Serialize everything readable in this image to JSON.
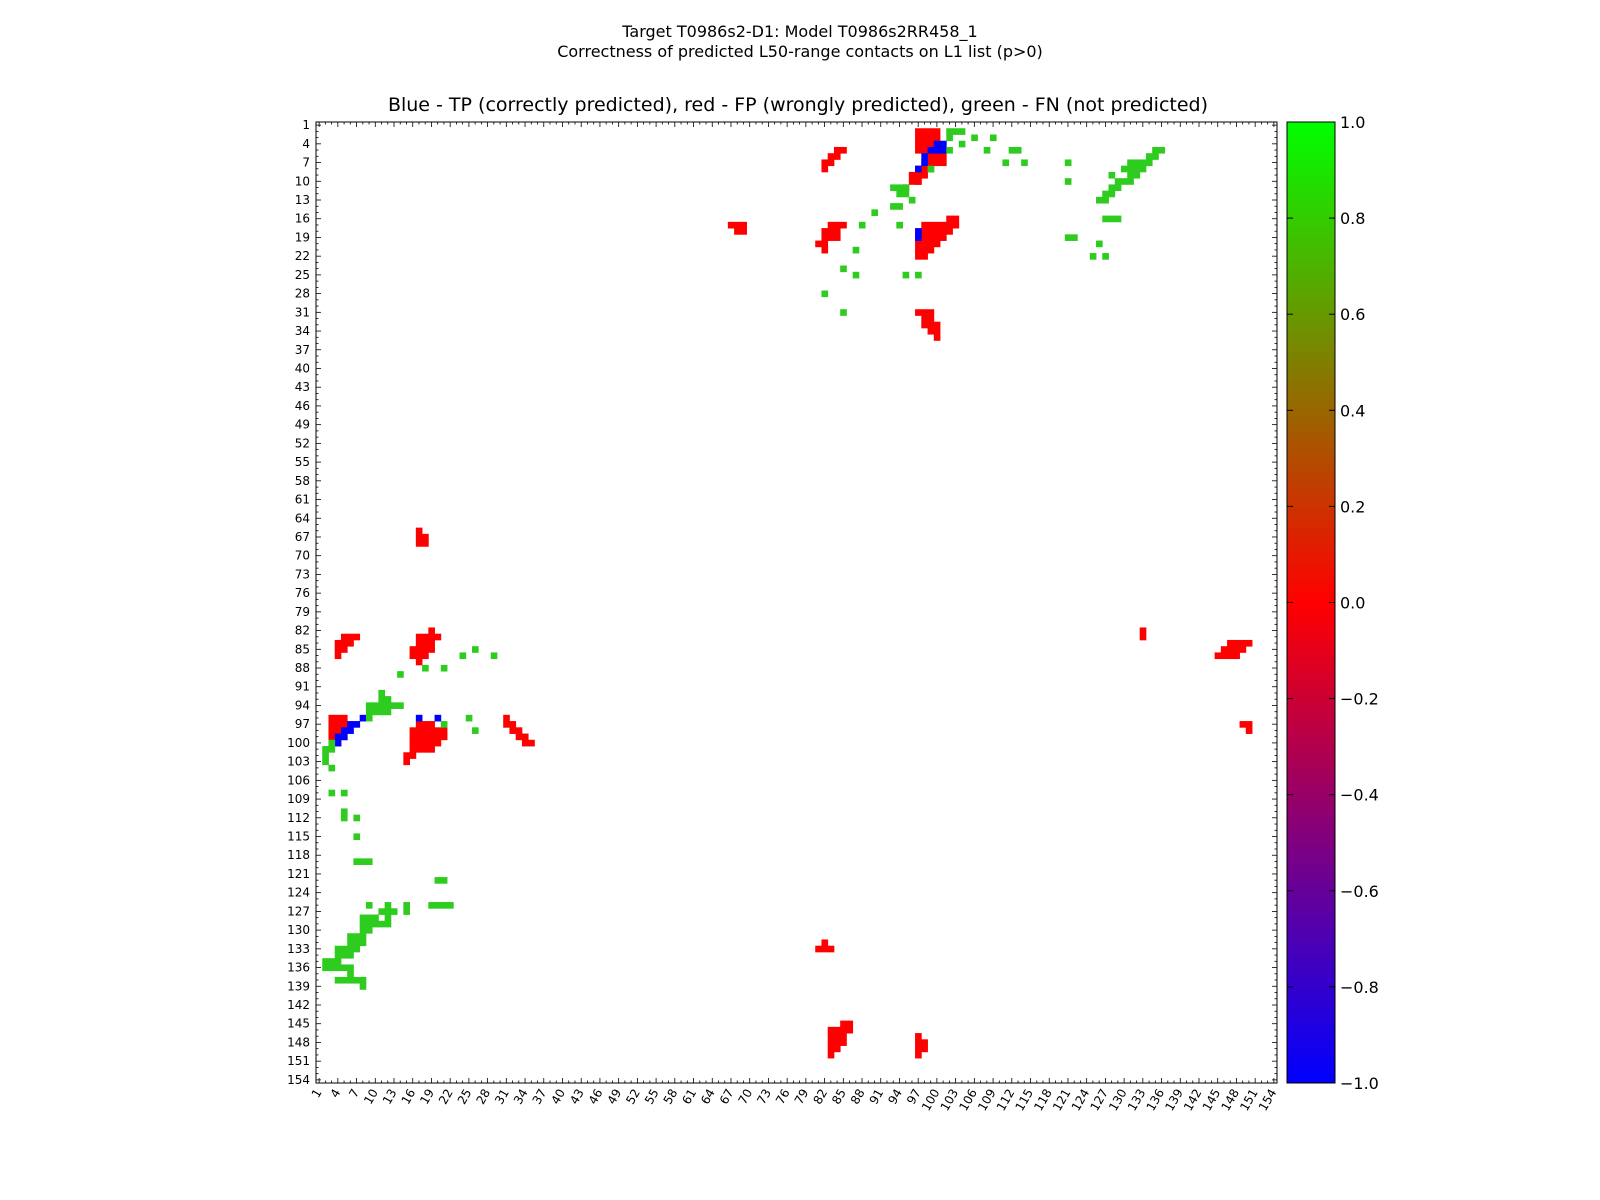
{
  "figure": {
    "title_line1": "Target T0986s2-D1: Model T0986s2RR458_1",
    "title_line2": "Correctness of predicted L50-range contacts on L1 list (p>0)",
    "subtitle": "Blue - TP (correctly predicted), red - FP (wrongly predicted), green - FN (not predicted)"
  },
  "chart_data": {
    "type": "heatmap",
    "n": 154,
    "xlim": [
      1,
      154
    ],
    "ylim": [
      1,
      154
    ],
    "tick_labels": [
      "1",
      "4",
      "7",
      "10",
      "13",
      "16",
      "19",
      "22",
      "25",
      "28",
      "31",
      "34",
      "37",
      "40",
      "43",
      "46",
      "49",
      "52",
      "55",
      "58",
      "61",
      "64",
      "67",
      "70",
      "73",
      "76",
      "79",
      "82",
      "85",
      "88",
      "91",
      "94",
      "97",
      "100",
      "103",
      "106",
      "109",
      "112",
      "115",
      "118",
      "121",
      "124",
      "127",
      "130",
      "133",
      "136",
      "139",
      "142",
      "145",
      "148",
      "151",
      "154"
    ],
    "colorbar": {
      "min": -1.0,
      "max": 1.0,
      "ticks": [
        "1.0",
        "0.8",
        "0.6",
        "0.4",
        "0.2",
        "0.0",
        "−0.2",
        "−0.4",
        "−0.6",
        "−0.8",
        "−1.0"
      ],
      "stops": [
        {
          "v": -1.0,
          "color": "#0000ff"
        },
        {
          "v": 0.0,
          "color": "#ff0000"
        },
        {
          "v": 1.0,
          "color": "#00ff00"
        }
      ]
    },
    "categories": {
      "TP": "#0000ff",
      "FP": "#ff0000",
      "FN": "#2ecc1f"
    },
    "cells": {
      "FP": [
        [
          2,
          97,
          4,
          100
        ],
        [
          5,
          100,
          3,
          101
        ],
        [
          6,
          99,
          3,
          99
        ],
        [
          7,
          98,
          3,
          98
        ],
        [
          8,
          97,
          3,
          97
        ],
        [
          9,
          96,
          2,
          96
        ],
        [
          10,
          97,
          1,
          97
        ],
        [
          11,
          95,
          1,
          95
        ],
        [
          5,
          84,
          1,
          85
        ],
        [
          6,
          83,
          1,
          84
        ],
        [
          7,
          82,
          1,
          83
        ],
        [
          8,
          82,
          1,
          82
        ],
        [
          16,
          102,
          1,
          103
        ],
        [
          17,
          98,
          1,
          103
        ],
        [
          18,
          98,
          1,
          102
        ],
        [
          19,
          97,
          1,
          101
        ],
        [
          20,
          97,
          1,
          100
        ],
        [
          21,
          97,
          1,
          99
        ],
        [
          22,
          97,
          1,
          98
        ],
        [
          17,
          83,
          1,
          85
        ],
        [
          18,
          82,
          1,
          84
        ],
        [
          19,
          82,
          1,
          84
        ],
        [
          20,
          81,
          1,
          82
        ],
        [
          21,
          82,
          1,
          82
        ],
        [
          17,
          67,
          1,
          69
        ],
        [
          18,
          68,
          1,
          69
        ],
        [
          31,
          97,
          1,
          99
        ],
        [
          32,
          98,
          1,
          99
        ],
        [
          33,
          98,
          1,
          100
        ],
        [
          34,
          99,
          1,
          100
        ],
        [
          35,
          100,
          1,
          100
        ],
        [
          66,
          17,
          1,
          17
        ],
        [
          67,
          17,
          1,
          18
        ],
        [
          68,
          17,
          1,
          18
        ],
        [
          83,
          5,
          1,
          7
        ],
        [
          84,
          4,
          1,
          6
        ],
        [
          85,
          4,
          1,
          5
        ],
        [
          86,
          4,
          1,
          4
        ],
        [
          82,
          19,
          1,
          19
        ],
        [
          83,
          17,
          1,
          20
        ],
        [
          84,
          17,
          1,
          19
        ],
        [
          85,
          16,
          1,
          19
        ],
        [
          86,
          16,
          1,
          18
        ],
        [
          87,
          17,
          1,
          17
        ],
        [
          96,
          3,
          4,
          5
        ],
        [
          97,
          3,
          1,
          4
        ],
        [
          98,
          3,
          1,
          3
        ],
        [
          99,
          3,
          1,
          3
        ],
        [
          100,
          4,
          1,
          4
        ],
        [
          97,
          17,
          1,
          19
        ],
        [
          98,
          16,
          1,
          21
        ],
        [
          99,
          16,
          1,
          21
        ],
        [
          100,
          16,
          1,
          20
        ],
        [
          101,
          16,
          1,
          19
        ],
        [
          102,
          15,
          1,
          16
        ],
        [
          103,
          15,
          1,
          15
        ],
        [
          96,
          31,
          1,
          31
        ],
        [
          97,
          31,
          1,
          32
        ],
        [
          98,
          32,
          1,
          33
        ],
        [
          99,
          33,
          1,
          34
        ],
        [
          100,
          34,
          1,
          35
        ],
        [
          82,
          133,
          1,
          133
        ],
        [
          83,
          133,
          1,
          133
        ],
        [
          84,
          147,
          1,
          150
        ],
        [
          85,
          146,
          1,
          149
        ],
        [
          86,
          145,
          1,
          148
        ],
        [
          97,
          149,
          1,
          150
        ],
        [
          98,
          150,
          1,
          150
        ],
        [
          132,
          82,
          1,
          82
        ],
        [
          133,
          81,
          1,
          83
        ],
        [
          145,
          85,
          1,
          86
        ],
        [
          146,
          83,
          1,
          86
        ],
        [
          147,
          83,
          1,
          85
        ],
        [
          148,
          83,
          1,
          85
        ],
        [
          149,
          83,
          1,
          84
        ],
        [
          150,
          83,
          1,
          83
        ],
        [
          147,
          97,
          1,
          97
        ],
        [
          148,
          97,
          1,
          98
        ],
        [
          149,
          97,
          1,
          98
        ],
        [
          150,
          97,
          1,
          97
        ]
      ],
      "TP": [
        [
          4,
          100,
          2,
          101
        ],
        [
          5,
          99,
          1,
          99
        ],
        [
          6,
          98,
          1,
          98
        ],
        [
          7,
          98,
          1,
          98
        ],
        [
          8,
          97,
          1,
          97
        ],
        [
          18,
          97,
          1,
          97
        ],
        [
          19,
          97,
          1,
          97
        ],
        [
          96,
          8,
          1,
          8
        ],
        [
          97,
          6,
          1,
          7
        ],
        [
          98,
          5,
          1,
          6
        ],
        [
          99,
          4,
          1,
          5
        ],
        [
          100,
          4,
          1,
          4
        ],
        [
          96,
          17,
          1,
          17
        ],
        [
          96,
          20,
          1,
          20
        ]
      ],
      "FN": [
        [
          2,
          102,
          1,
          104
        ],
        [
          3,
          102,
          1,
          102
        ],
        [
          3,
          106,
          1,
          106
        ],
        [
          3,
          109,
          1,
          109
        ],
        [
          4,
          104,
          1,
          104
        ],
        [
          5,
          102,
          1,
          102
        ],
        [
          5,
          108,
          1,
          108
        ],
        [
          5,
          112,
          1,
          113
        ],
        [
          6,
          134,
          1,
          135
        ],
        [
          5,
          135,
          1,
          136
        ],
        [
          7,
          111,
          1,
          111
        ],
        [
          7,
          114,
          1,
          114
        ],
        [
          7,
          121,
          1,
          121
        ],
        [
          7,
          131,
          1,
          134
        ],
        [
          8,
          130,
          1,
          133
        ],
        [
          9,
          131,
          1,
          132
        ],
        [
          9,
          128,
          1,
          128
        ],
        [
          10,
          129,
          1,
          131
        ],
        [
          11,
          128,
          1,
          129
        ],
        [
          12,
          127,
          1,
          128
        ],
        [
          13,
          126,
          1,
          127
        ],
        [
          8,
          99,
          1,
          99
        ],
        [
          10,
          121,
          1,
          121
        ],
        [
          11,
          93,
          1,
          95
        ],
        [
          12,
          94,
          1,
          95
        ],
        [
          13,
          96,
          1,
          96
        ],
        [
          14,
          93,
          1,
          94
        ],
        [
          15,
          90,
          1,
          90
        ],
        [
          16,
          127,
          1,
          129
        ],
        [
          17,
          88,
          1,
          88
        ],
        [
          17,
          94,
          1,
          94
        ],
        [
          19,
          121,
          1,
          122
        ],
        [
          20,
          126,
          1,
          126
        ],
        [
          21,
          87,
          1,
          87
        ],
        [
          22,
          125,
          1,
          125
        ],
        [
          22,
          127,
          1,
          127
        ],
        [
          24,
          85,
          1,
          85
        ],
        [
          25,
          87,
          1,
          87
        ],
        [
          25,
          95,
          1,
          95
        ],
        [
          25,
          97,
          1,
          97
        ],
        [
          28,
          82,
          1,
          82
        ],
        [
          31,
          85,
          1,
          85
        ],
        [
          85,
          26,
          1,
          26
        ],
        [
          86,
          24,
          1,
          24
        ],
        [
          86,
          29,
          1,
          29
        ],
        [
          88,
          18,
          1,
          18
        ],
        [
          88,
          21,
          1,
          21
        ],
        [
          89,
          14,
          1,
          14
        ],
        [
          92,
          11,
          1,
          11
        ],
        [
          93,
          11,
          1,
          12
        ],
        [
          94,
          9,
          1,
          14
        ],
        [
          95,
          9,
          1,
          12
        ],
        [
          96,
          9,
          1,
          9
        ],
        [
          96,
          25,
          1,
          25
        ],
        [
          97,
          21,
          1,
          21
        ],
        [
          98,
          26,
          1,
          26
        ],
        [
          100,
          3,
          1,
          3
        ],
        [
          101,
          2,
          1,
          3
        ],
        [
          102,
          2,
          1,
          2
        ],
        [
          103,
          2,
          1,
          2
        ],
        [
          104,
          3,
          1,
          3
        ],
        [
          108,
          3,
          1,
          3
        ],
        [
          108,
          5,
          1,
          5
        ],
        [
          111,
          5,
          1,
          5
        ],
        [
          112,
          5,
          1,
          5
        ],
        [
          112,
          7,
          1,
          7
        ],
        [
          115,
          7,
          1,
          7
        ],
        [
          119,
          7,
          1,
          9
        ],
        [
          122,
          20,
          1,
          21
        ],
        [
          126,
          15,
          1,
          15
        ],
        [
          126,
          9,
          1,
          9
        ],
        [
          126,
          12,
          1,
          12
        ],
        [
          126,
          19,
          1,
          22
        ],
        [
          127,
          11,
          1,
          13
        ],
        [
          127,
          15,
          1,
          15
        ],
        [
          128,
          8,
          1,
          10
        ],
        [
          128,
          12,
          1,
          12
        ],
        [
          129,
          8,
          1,
          12
        ],
        [
          130,
          8,
          1,
          9
        ],
        [
          131,
          6,
          1,
          8
        ],
        [
          132,
          6,
          1,
          8
        ],
        [
          133,
          4,
          1,
          7
        ],
        [
          134,
          4,
          1,
          6
        ],
        [
          135,
          2,
          1,
          4
        ],
        [
          136,
          2,
          1,
          6
        ],
        [
          137,
          6,
          1,
          6
        ],
        [
          138,
          4,
          1,
          8
        ],
        [
          139,
          8,
          1,
          8
        ]
      ]
    }
  }
}
